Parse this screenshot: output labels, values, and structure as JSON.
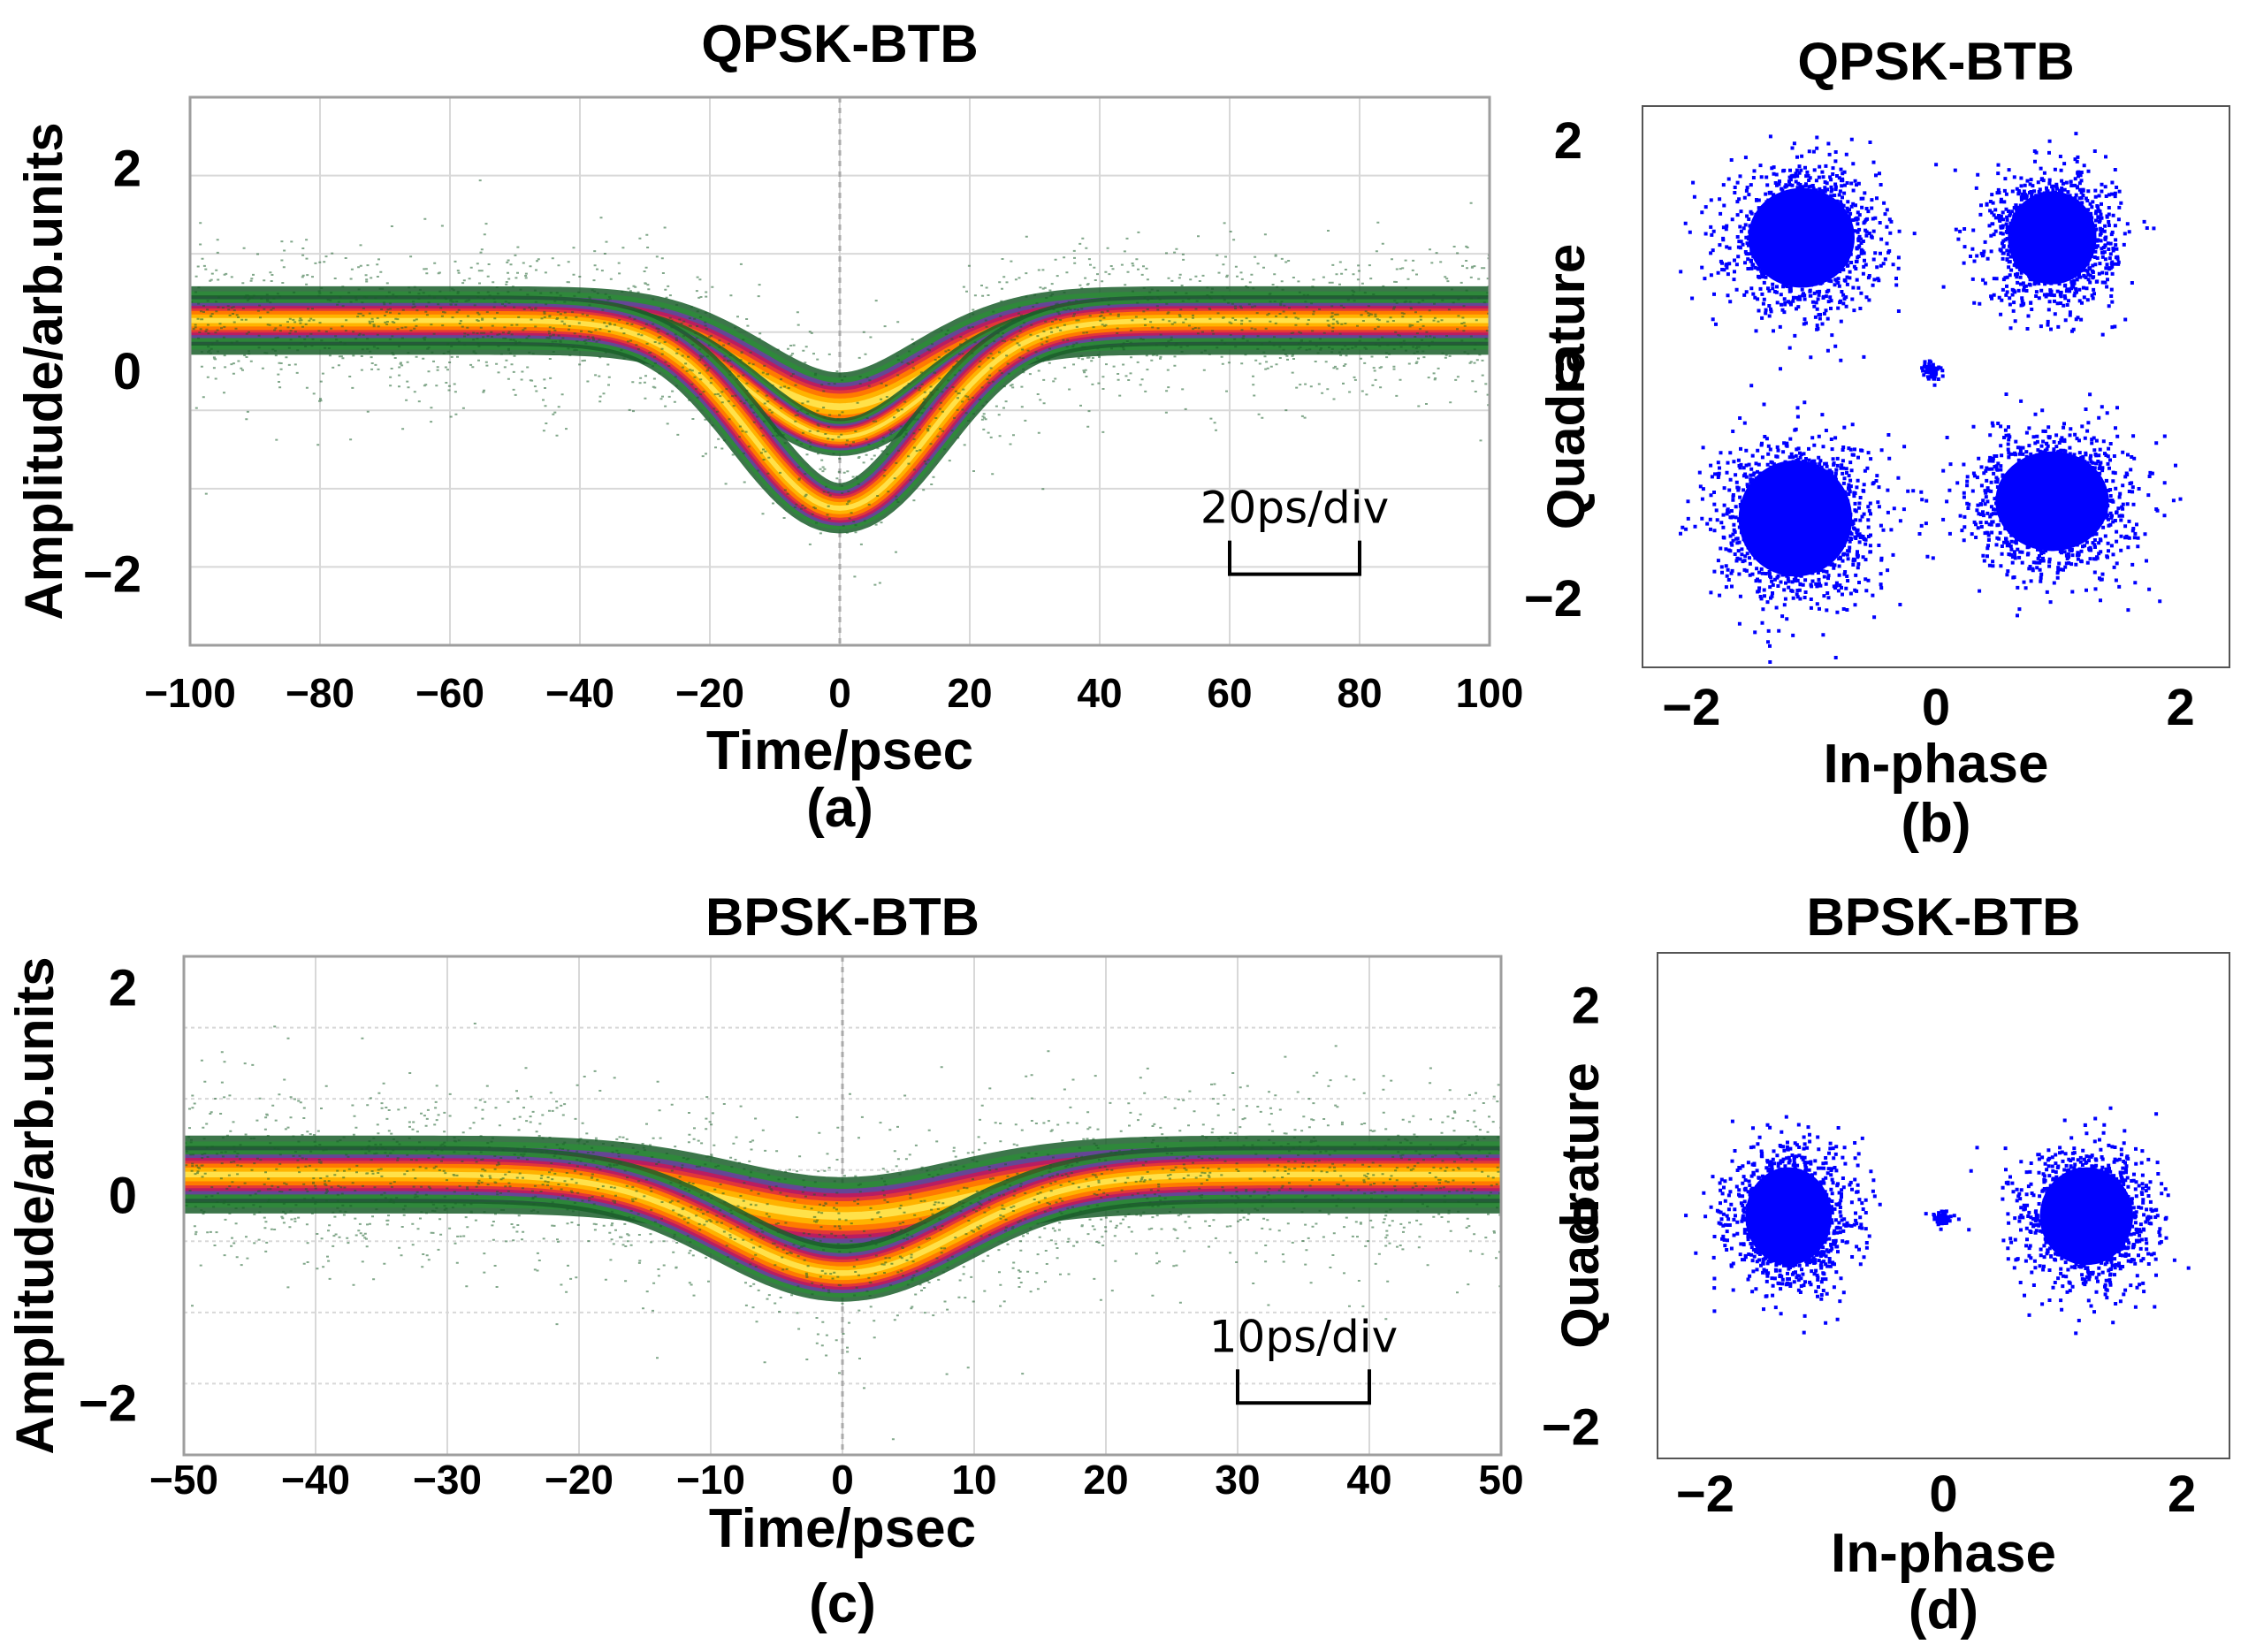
{
  "colors": {
    "eye_palette": [
      "#1a5e2a",
      "#2e8b3a",
      "#6b3fa0",
      "#c2185b",
      "#e53935",
      "#ff7a00",
      "#ffb300",
      "#ffe14a"
    ],
    "constellation": "#0000ff",
    "grid": "#d8d8d8"
  },
  "chart_data": [
    {
      "id": "a",
      "type": "eye-diagram",
      "title": "QPSK-BTB",
      "xlabel": "Time/psec",
      "ylabel": "Amplitude/arb.units",
      "caption": "(a)",
      "xlim": [
        -100,
        100
      ],
      "ylim": [
        -2.7,
        2.7
      ],
      "xticks": [
        -100,
        -80,
        -60,
        -40,
        -20,
        0,
        20,
        40,
        60,
        80,
        100
      ],
      "xtick_labels": [
        "−100",
        "−80",
        "−60",
        "−40",
        "−20",
        "0",
        "20",
        "40",
        "60",
        "80",
        "100"
      ],
      "yticks": [
        2,
        0,
        -2
      ],
      "ytick_labels": [
        "2",
        "0",
        "−2"
      ],
      "baseline": 0.5,
      "band_halfwidth": 0.45,
      "dip_width": 22,
      "traces": [
        {
          "name": "upper branch",
          "min": -0.35
        },
        {
          "name": "middle branch",
          "min": -0.65
        },
        {
          "name": "lower branch",
          "min": -1.35
        }
      ],
      "scale_bar": {
        "label": "20ps/div",
        "x_from": 60,
        "x_to": 80,
        "y": -2.0
      }
    },
    {
      "id": "b",
      "type": "scatter",
      "title": "QPSK-BTB",
      "xlabel": "In-phase",
      "ylabel": "Quadrature",
      "caption": "(b)",
      "xlim": [
        -2.4,
        2.4
      ],
      "ylim": [
        -2.6,
        2.3
      ],
      "xticks": [
        -2,
        0,
        2
      ],
      "xtick_labels": [
        "−2",
        "0",
        "2"
      ],
      "yticks": [
        2,
        0,
        -2
      ],
      "ytick_labels": [
        "2",
        "0",
        "−2"
      ],
      "clusters": [
        {
          "x": -1.1,
          "y": 1.15,
          "spread_x": 0.3,
          "spread_y": 0.3
        },
        {
          "x": 0.95,
          "y": 1.15,
          "spread_x": 0.25,
          "spread_y": 0.28
        },
        {
          "x": -1.15,
          "y": -1.3,
          "spread_x": 0.32,
          "spread_y": 0.35
        },
        {
          "x": 0.95,
          "y": -1.15,
          "spread_x": 0.32,
          "spread_y": 0.3
        },
        {
          "x": -0.05,
          "y": 0.0,
          "spread_x": 0.04,
          "spread_y": 0.05
        }
      ]
    },
    {
      "id": "c",
      "type": "eye-diagram",
      "title": "BPSK-BTB",
      "xlabel": "Time/psec",
      "ylabel": "Amplitude/arb.units",
      "caption": "(c)",
      "xlim": [
        -50,
        50
      ],
      "ylim": [
        -2.5,
        2.3
      ],
      "xticks": [
        -50,
        -40,
        -30,
        -20,
        -10,
        0,
        10,
        20,
        30,
        40,
        50
      ],
      "xtick_labels": [
        "−50",
        "−40",
        "−30",
        "−20",
        "−10",
        "0",
        "10",
        "20",
        "30",
        "40",
        "50"
      ],
      "yticks": [
        2,
        0,
        -2
      ],
      "ytick_labels": [
        "2",
        "0",
        "−2"
      ],
      "baseline": 0.2,
      "band_halfwidth": 0.5,
      "dip_width": 14,
      "traces": [
        {
          "name": "upper branch",
          "min": -0.2
        },
        {
          "name": "lower branch",
          "min": -0.75
        }
      ],
      "scale_bar": {
        "label": "10ps/div",
        "x_from": 30,
        "x_to": 40,
        "y": -2.0
      }
    },
    {
      "id": "d",
      "type": "scatter",
      "title": "BPSK-BTB",
      "xlabel": "In-phase",
      "ylabel": "Quadrature",
      "caption": "(d)",
      "xlim": [
        -2.4,
        2.4
      ],
      "ylim": [
        -2.3,
        2.5
      ],
      "xticks": [
        -2,
        0,
        2
      ],
      "xtick_labels": [
        "−2",
        "0",
        "2"
      ],
      "yticks": [
        2,
        0,
        -2
      ],
      "ytick_labels": [
        "2",
        "0",
        "−2"
      ],
      "clusters": [
        {
          "x": -1.3,
          "y": 0.0,
          "spread_x": 0.25,
          "spread_y": 0.32
        },
        {
          "x": 1.2,
          "y": 0.0,
          "spread_x": 0.27,
          "spread_y": 0.32
        },
        {
          "x": -0.02,
          "y": 0.0,
          "spread_x": 0.04,
          "spread_y": 0.04
        }
      ]
    }
  ]
}
